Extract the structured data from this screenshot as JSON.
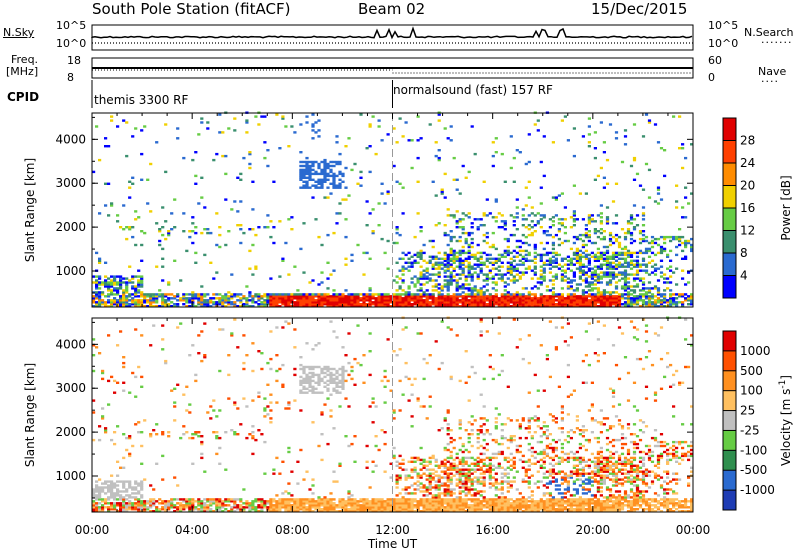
{
  "header": {
    "title": "South Pole Station (fitACF)",
    "beam": "Beam 02",
    "date": "15/Dec/2015"
  },
  "status_panels": {
    "nsky_label": "N.Sky",
    "nsearch_label": "N.Search",
    "noise_left_ticks": [
      "10^5",
      "10^0"
    ],
    "noise_right_ticks": [
      "10^5",
      "10^0"
    ],
    "freq_label": "Freq.",
    "freq_unit": "[MHz]",
    "freq_ticks": [
      "18",
      "8"
    ],
    "nave_label": "Nave",
    "nave_ticks": [
      "60",
      "0"
    ],
    "cpid_label": "CPID",
    "cpid_segments": [
      {
        "label": "themis 3300 RF",
        "start_hour": 0
      },
      {
        "label": "normalsound (fast) 157 RF",
        "start_hour": 12
      }
    ]
  },
  "chart_data": [
    {
      "type": "heatmap",
      "name": "power",
      "ylabel": "Slant Range [km]",
      "xlabel": "Time UT",
      "x_range_hours": [
        0,
        24
      ],
      "ylim": [
        180,
        4600
      ],
      "ytick_labels": [
        "1000",
        "2000",
        "3000",
        "4000"
      ],
      "xtick_labels": [
        "00:00",
        "04:00",
        "08:00",
        "12:00",
        "16:00",
        "20:00",
        "00:00"
      ],
      "colorbar": {
        "label": "Power [dB]",
        "ticks": [
          "4",
          "8",
          "12",
          "16",
          "20",
          "24",
          "28"
        ],
        "colors": [
          "#0000ff",
          "#2a6ad0",
          "#3a8f6e",
          "#66cc44",
          "#f0d000",
          "#ff8c00",
          "#ff4000",
          "#e00000"
        ]
      }
    },
    {
      "type": "heatmap",
      "name": "velocity",
      "ylabel": "Slant Range [km]",
      "xlabel": "Time UT",
      "x_range_hours": [
        0,
        24
      ],
      "ylim": [
        180,
        4600
      ],
      "ytick_labels": [
        "1000",
        "2000",
        "3000",
        "4000"
      ],
      "xtick_labels": [
        "00:00",
        "04:00",
        "08:00",
        "12:00",
        "16:00",
        "20:00",
        "00:00"
      ],
      "colorbar": {
        "label": "Velocity [m s",
        "label_superscript": "-1",
        "label_suffix": "]",
        "ticks": [
          "1000",
          "500",
          "100",
          "25",
          "-25",
          "-100",
          "-500",
          "-1000"
        ],
        "colors": [
          "#1e3cb4",
          "#2a6ad0",
          "#2f8f4f",
          "#66cc44",
          "#c0c0c0",
          "#ffc060",
          "#ff9020",
          "#ff5000",
          "#e00000"
        ]
      }
    }
  ]
}
